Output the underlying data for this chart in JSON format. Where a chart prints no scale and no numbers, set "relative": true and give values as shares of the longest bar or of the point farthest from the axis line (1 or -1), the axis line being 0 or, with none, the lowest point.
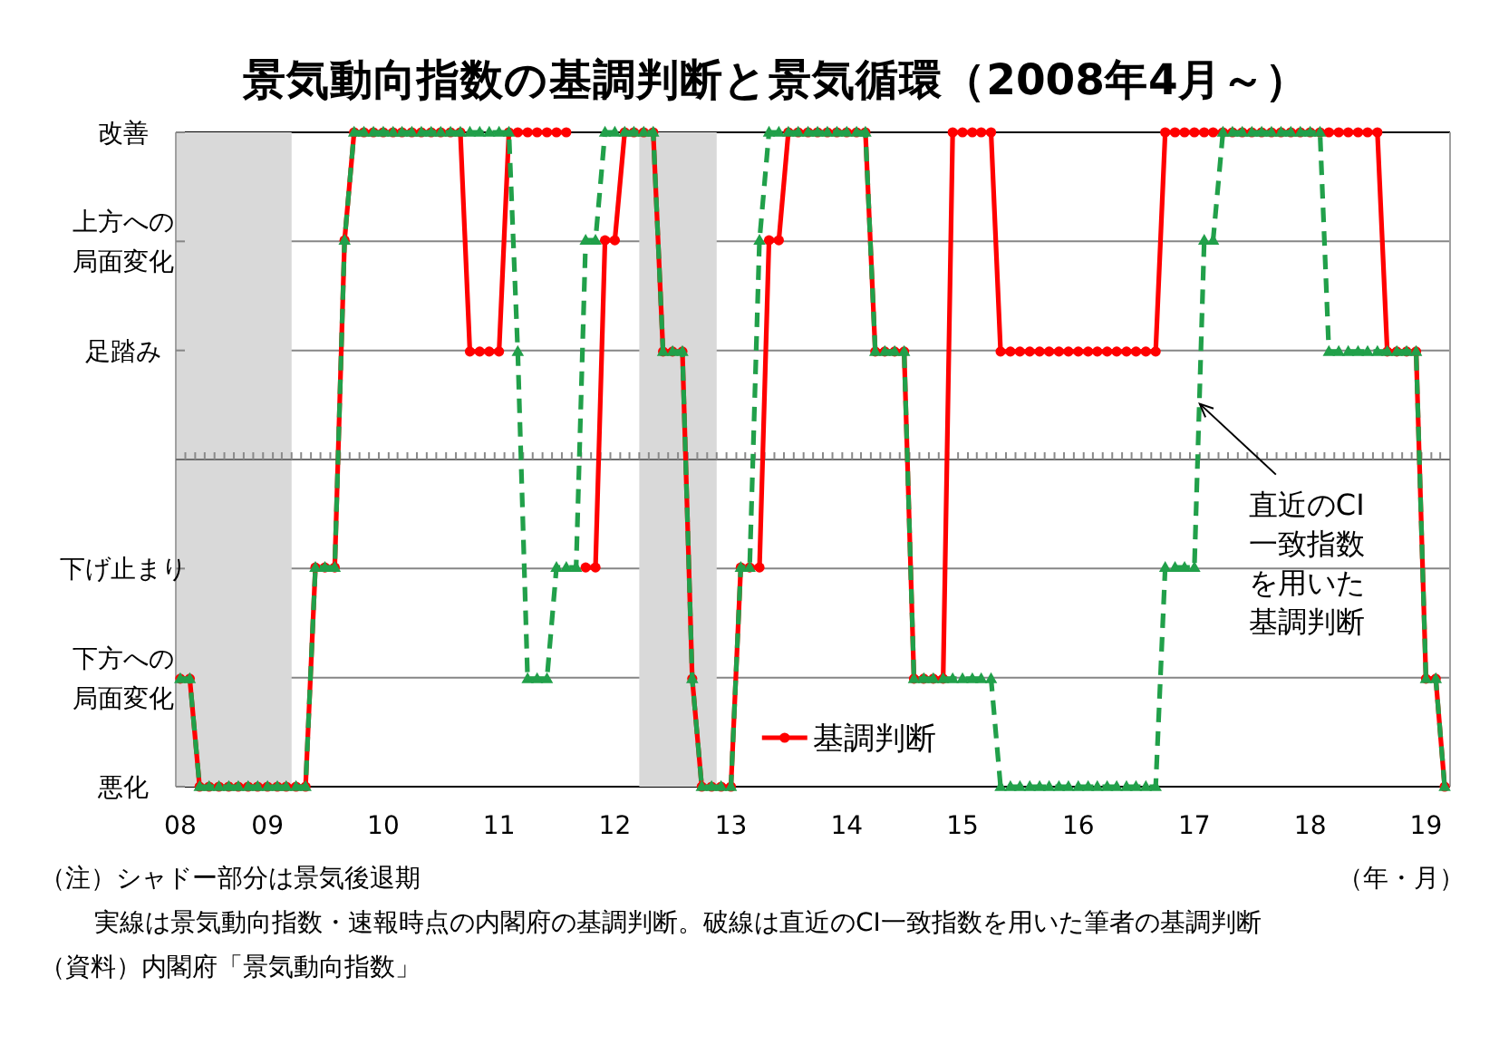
{
  "chart_data": {
    "type": "line",
    "title": "景気動向指数の基調判断と景気循環（2008年4月～）",
    "xlabel": "（年・月）",
    "x": [
      "2008-04-15",
      "2008-05-15",
      "2008-06-15",
      "2008-07-15",
      "2008-08-15",
      "2008-09-15",
      "2008-10-15",
      "2008-11-15",
      "2008-12-15",
      "2009-01-15",
      "2009-02-15",
      "2009-03-15",
      "2009-04-15",
      "2009-05-15",
      "2009-06-15",
      "2009-07-15",
      "2009-08-15",
      "2009-09-15",
      "2009-10-15",
      "2009-11-15",
      "2009-12-15",
      "2010-01-15",
      "2010-02-15",
      "2010-03-15",
      "2010-04-15",
      "2010-05-15",
      "2010-06-15",
      "2010-07-15",
      "2010-08-15",
      "2010-09-15",
      "2010-10-15",
      "2010-11-15",
      "2010-12-15",
      "2011-01-15",
      "2011-02-15",
      "2011-03-15",
      "2011-04-15",
      "2011-05-15",
      "2011-06-15",
      "2011-07-15",
      "2011-08-15",
      "2011-09-15",
      "2011-10-15",
      "2011-11-15",
      "2011-12-15",
      "2012-01-15",
      "2012-02-15",
      "2012-03-15",
      "2012-04-15",
      "2012-05-15",
      "2012-06-15",
      "2012-07-15",
      "2012-08-15",
      "2012-09-15",
      "2012-10-15",
      "2012-11-15",
      "2012-12-15",
      "2013-01-15",
      "2013-02-15",
      "2013-03-15",
      "2013-04-15",
      "2013-05-15",
      "2013-06-15",
      "2013-07-15",
      "2013-08-15",
      "2013-09-15",
      "2013-10-15",
      "2013-11-15",
      "2013-12-15",
      "2014-01-15",
      "2014-02-15",
      "2014-03-15",
      "2014-04-15",
      "2014-05-15",
      "2014-06-15",
      "2014-07-15",
      "2014-08-15",
      "2014-09-15",
      "2014-10-15",
      "2014-11-15",
      "2014-12-15",
      "2015-01-15",
      "2015-02-15",
      "2015-03-15",
      "2015-04-15",
      "2015-05-15",
      "2015-06-15",
      "2015-07-15",
      "2015-08-15",
      "2015-09-15",
      "2015-10-15",
      "2015-11-15",
      "2015-12-15",
      "2016-01-15",
      "2016-02-15",
      "2016-03-15",
      "2016-04-15",
      "2016-05-15",
      "2016-06-15",
      "2016-07-15",
      "2016-08-15",
      "2016-09-15",
      "2016-10-15",
      "2016-11-15",
      "2016-12-15",
      "2017-01-15",
      "2017-02-15",
      "2017-03-15",
      "2017-04-15",
      "2017-05-15",
      "2017-06-15",
      "2017-07-15",
      "2017-08-15",
      "2017-09-15",
      "2017-10-15",
      "2017-11-15",
      "2017-12-15",
      "2018-01-15",
      "2018-02-15",
      "2018-03-15",
      "2018-04-15",
      "2018-05-15",
      "2018-06-15",
      "2018-07-15",
      "2018-08-15",
      "2018-09-15",
      "2018-10-15",
      "2018-11-15",
      "2018-12-15",
      "2019-01-15",
      "2019-02-15",
      "2019-03-15"
    ],
    "xlim": [
      "2008-04",
      "2019-04"
    ],
    "xticks": [
      {
        "value": "2008-04-15",
        "label": "08"
      },
      {
        "value": "2009-01-15",
        "label": "09"
      },
      {
        "value": "2010-01-15",
        "label": "10"
      },
      {
        "value": "2011-01-15",
        "label": "11"
      },
      {
        "value": "2012-01-15",
        "label": "12"
      },
      {
        "value": "2013-01-15",
        "label": "13"
      },
      {
        "value": "2014-01-15",
        "label": "14"
      },
      {
        "value": "2015-01-15",
        "label": "15"
      },
      {
        "value": "2016-01-15",
        "label": "16"
      },
      {
        "value": "2017-01-15",
        "label": "17"
      },
      {
        "value": "2018-01-15",
        "label": "18"
      },
      {
        "value": "2019-01-15",
        "label": "19"
      }
    ],
    "relative": true,
    "y_categories": [
      "改善",
      "上方への局面変化",
      "足踏み",
      null,
      "下げ止まり",
      "下方への局面変化",
      "悪化"
    ],
    "grid": "y",
    "legend": "bottom",
    "bands": [
      {
        "axis": "x",
        "from": "2008-04",
        "to": "2009-04",
        "color": "#d9d9d9"
      },
      {
        "axis": "x",
        "from": "2012-04",
        "to": "2012-12",
        "color": "#d9d9d9"
      }
    ],
    "series": [
      {
        "name": "基調判断",
        "color": "#ff0000",
        "marker": "circle",
        "line_style": "solid",
        "values": [
          -0.67,
          -0.67,
          -1,
          -1,
          -1,
          -1,
          -1,
          -1,
          -1,
          -1,
          -1,
          -1,
          -1,
          -1,
          -0.33,
          -0.33,
          -0.33,
          0.67,
          1,
          1,
          1,
          1,
          1,
          1,
          1,
          1,
          1,
          1,
          1,
          1,
          0.33,
          0.33,
          0.33,
          0.33,
          1,
          1,
          1,
          1,
          1,
          1,
          1,
          null,
          -0.33,
          -0.33,
          0.67,
          0.67,
          1,
          1,
          1,
          1,
          0.33,
          0.33,
          0.33,
          -0.67,
          -1,
          -1,
          -1,
          -1,
          -0.33,
          -0.33,
          -0.33,
          0.67,
          0.67,
          1,
          1,
          1,
          1,
          1,
          1,
          1,
          1,
          1,
          0.33,
          0.33,
          0.33,
          0.33,
          -0.67,
          -0.67,
          -0.67,
          -0.67,
          1,
          1,
          1,
          1,
          1,
          0.33,
          0.33,
          0.33,
          0.33,
          0.33,
          0.33,
          0.33,
          0.33,
          0.33,
          0.33,
          0.33,
          0.33,
          0.33,
          0.33,
          0.33,
          0.33,
          0.33,
          1,
          1,
          1,
          1,
          1,
          1,
          1,
          1,
          1,
          1,
          1,
          1,
          1,
          1,
          1,
          1,
          1,
          1,
          1,
          1,
          1,
          1,
          1,
          0.33,
          0.33,
          0.33,
          0.33,
          -0.67,
          -0.67,
          -1
        ]
      },
      {
        "color": "#21a04a",
        "marker": "triangle",
        "line_style": "dashed",
        "values": [
          -0.67,
          -0.67,
          -1,
          -1,
          -1,
          -1,
          -1,
          -1,
          -1,
          -1,
          -1,
          -1,
          -1,
          -1,
          -0.33,
          -0.33,
          -0.33,
          0.67,
          1,
          1,
          1,
          1,
          1,
          1,
          1,
          1,
          1,
          1,
          1,
          1,
          1,
          1,
          1,
          1,
          1,
          0.33,
          -0.67,
          -0.67,
          -0.67,
          -0.33,
          -0.33,
          -0.33,
          0.67,
          0.67,
          1,
          1,
          1,
          1,
          1,
          1,
          0.33,
          0.33,
          0.33,
          -0.67,
          -1,
          -1,
          -1,
          -1,
          -0.33,
          -0.33,
          0.67,
          1,
          1,
          1,
          1,
          1,
          1,
          1,
          1,
          1,
          1,
          1,
          0.33,
          0.33,
          0.33,
          0.33,
          -0.67,
          -0.67,
          -0.67,
          -0.67,
          -0.67,
          -0.67,
          -0.67,
          -0.67,
          -0.67,
          -1,
          -1,
          -1,
          -1,
          -1,
          -1,
          -1,
          -1,
          -1,
          -1,
          -1,
          -1,
          -1,
          -1,
          -1,
          -1,
          -1,
          -0.33,
          -0.33,
          -0.33,
          -0.33,
          0.67,
          0.67,
          1,
          1,
          1,
          1,
          1,
          1,
          1,
          1,
          1,
          1,
          1,
          0.33,
          0.33,
          0.33,
          0.33,
          0.33,
          0.33,
          0.33,
          0.33,
          0.33,
          0.33,
          -0.67,
          -0.67,
          -1
        ]
      }
    ],
    "annotations": [
      {
        "text": "直近のCI一致指数を用いた基調判断",
        "x": "2017-02",
        "y": 0.17
      },
      "（注）シャドー部分は景気後退期",
      "実線は景気動向指数・速報時点の内閣府の基調判断。破線は直近のCI一致指数を用いた筆者の基調判断",
      "（資料）内閣府「景気動向指数」"
    ]
  }
}
